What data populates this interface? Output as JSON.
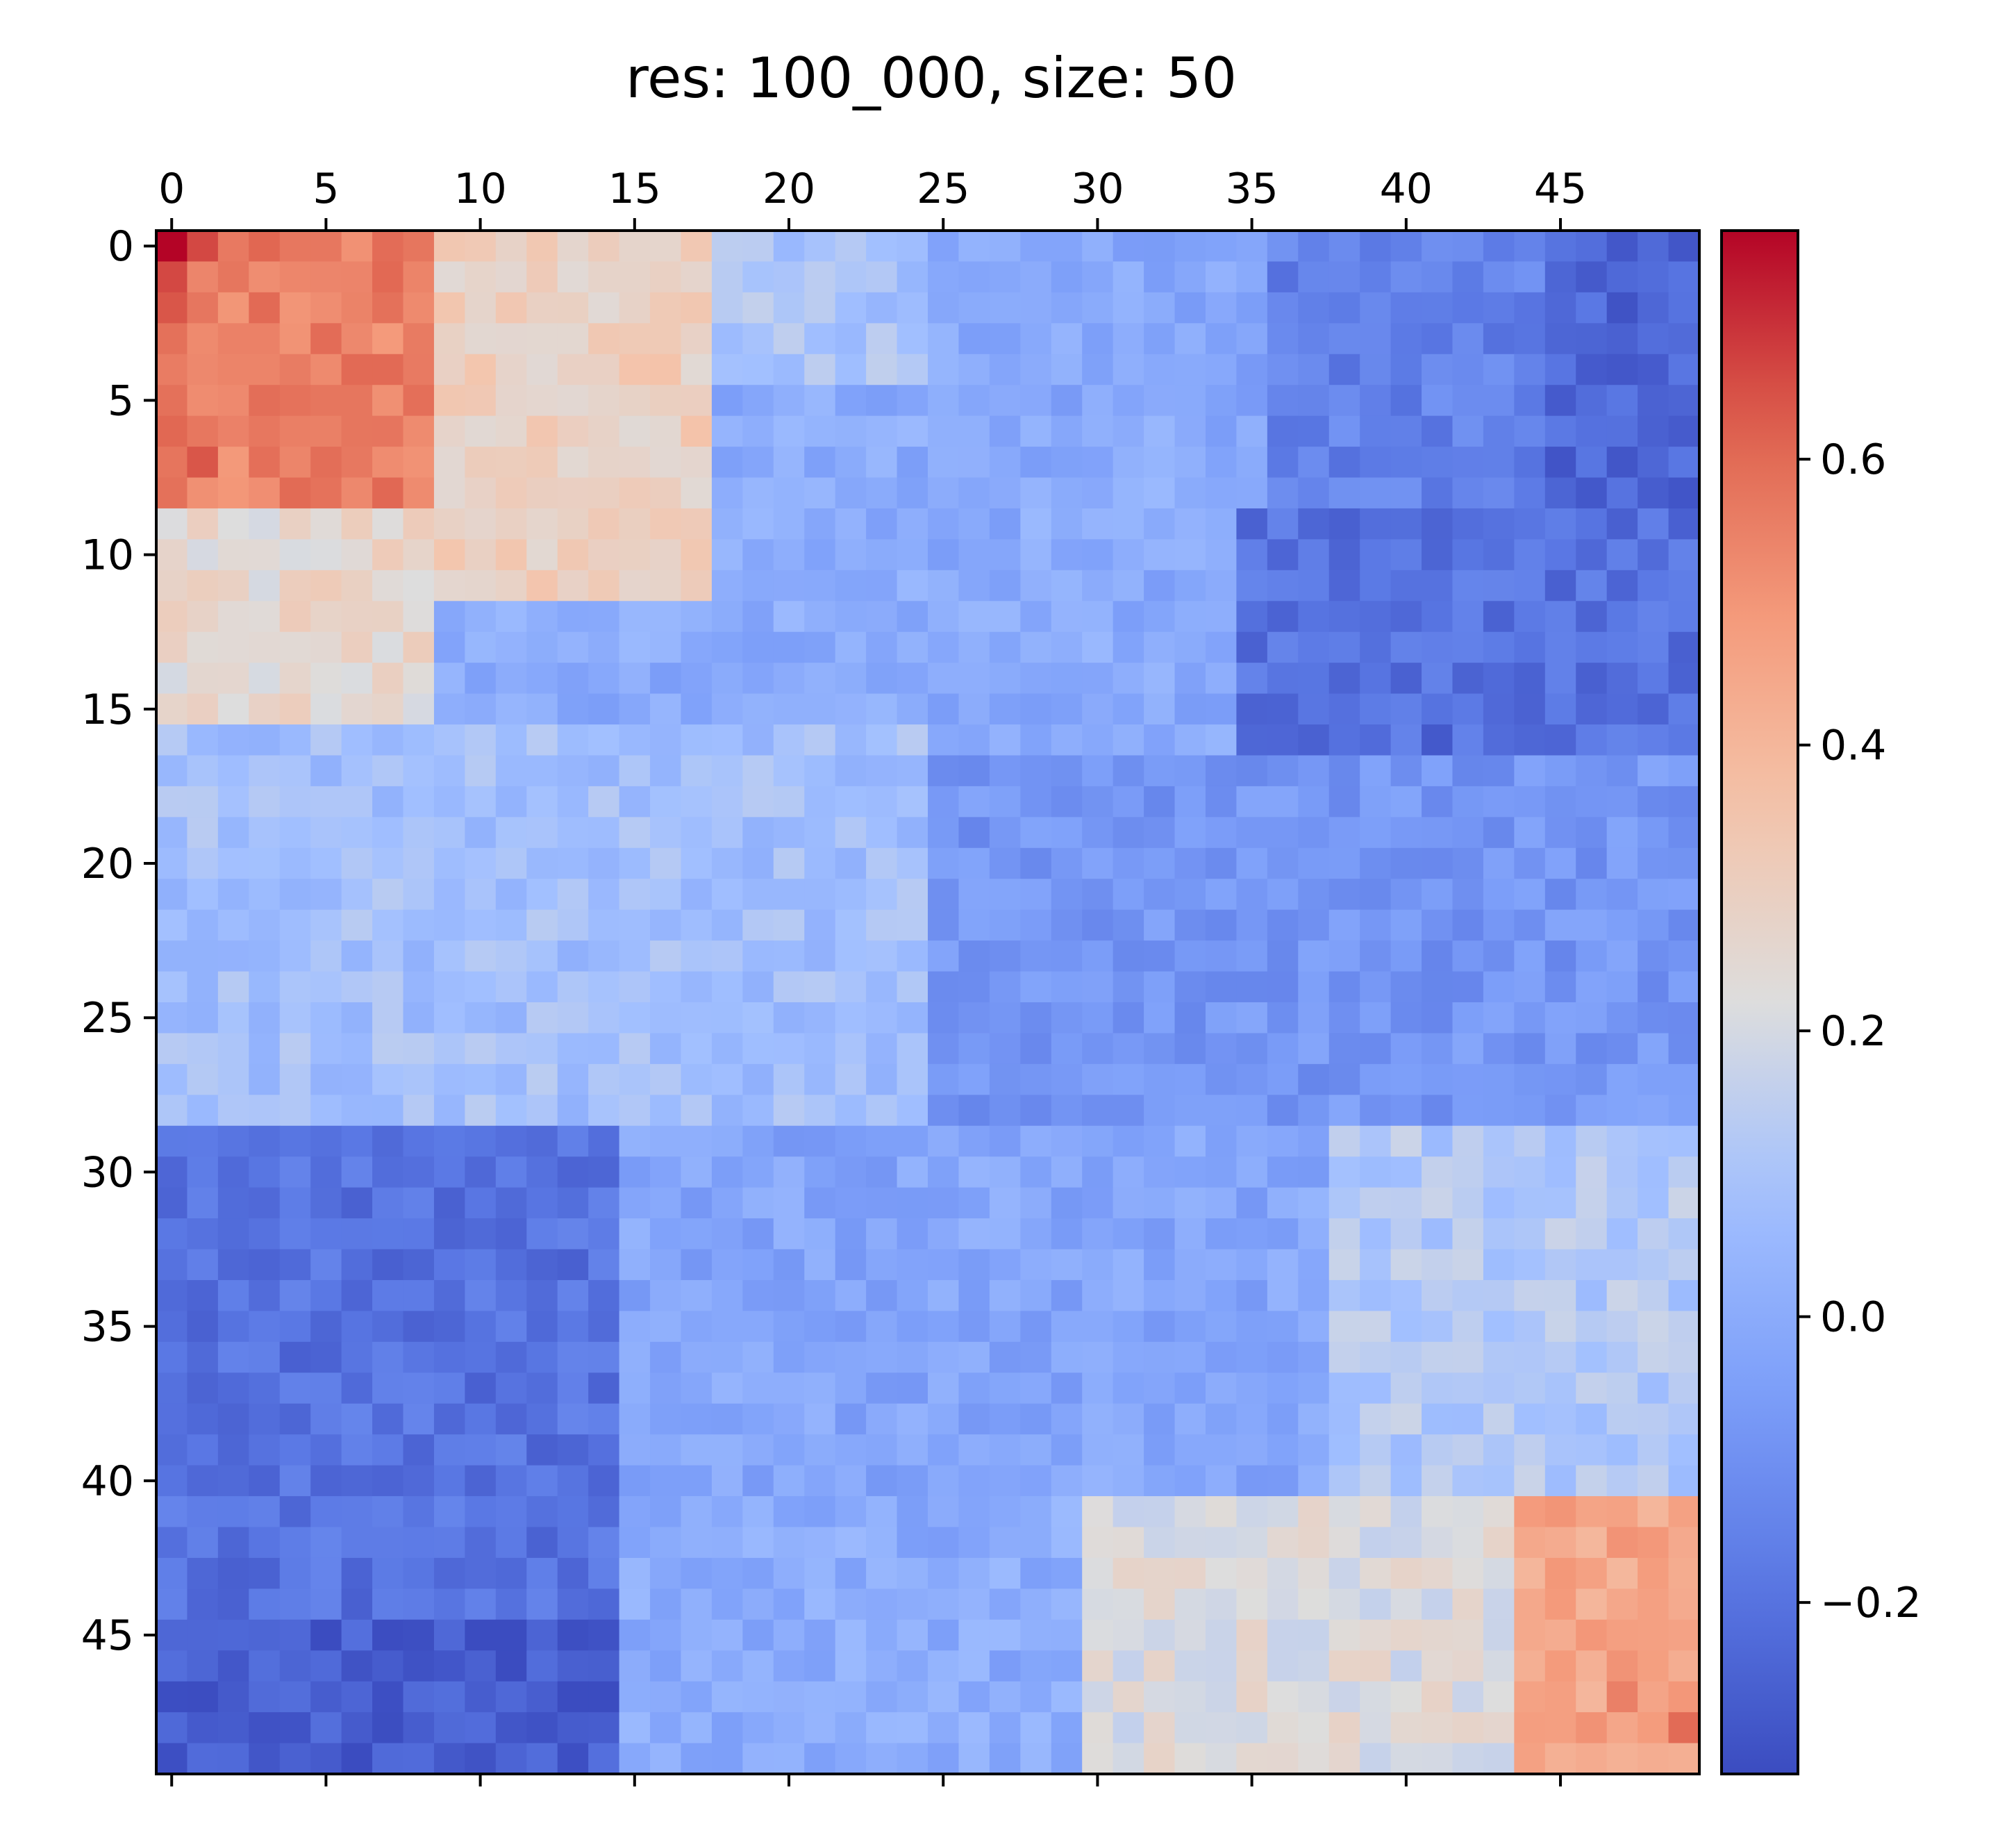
{
  "chart_data": {
    "type": "heatmap",
    "title": "res: 100_000, size: 50",
    "rows": 50,
    "cols": 50,
    "x_ticks": [
      0,
      5,
      10,
      15,
      20,
      25,
      30,
      35,
      40,
      45
    ],
    "x_tick_labels": [
      "0",
      "5",
      "10",
      "15",
      "20",
      "25",
      "30",
      "35",
      "40",
      "45"
    ],
    "y_ticks": [
      0,
      5,
      10,
      15,
      20,
      25,
      30,
      35,
      40,
      45
    ],
    "y_tick_labels": [
      "0",
      "5",
      "10",
      "15",
      "20",
      "25",
      "30",
      "35",
      "40",
      "45"
    ],
    "x_axis_position": "top",
    "colormap": "coolwarm",
    "vmin": -0.32,
    "vmax": 0.76,
    "colorbar_ticks": [
      -0.2,
      0.0,
      0.2,
      0.4,
      0.6
    ],
    "colorbar_tick_labels": [
      "−0.2",
      "0.0",
      "0.2",
      "0.4",
      "0.6"
    ],
    "value_description": "Correlation-like matrix: strong positive block near (0,0) (~0.76 max) and near (49,49) (~0.6), negative band (~-0.2 to -0.3) in upper-right and lower-left; fine per-cell noise.",
    "blocks": [
      {
        "r0": 0,
        "r1": 9,
        "c0": 0,
        "c1": 9,
        "value": 0.55
      },
      {
        "r0": 0,
        "r1": 12,
        "c0": 9,
        "c1": 18,
        "value": 0.3
      },
      {
        "r0": 0,
        "r1": 5,
        "c0": 18,
        "c1": 25,
        "value": 0.1
      },
      {
        "r0": 0,
        "r1": 6,
        "c0": 25,
        "c1": 36,
        "value": -0.02
      },
      {
        "r0": 0,
        "r1": 9,
        "c0": 36,
        "c1": 45,
        "value": -0.15
      },
      {
        "r0": 0,
        "r1": 9,
        "c0": 45,
        "c1": 50,
        "value": -0.24
      },
      {
        "r0": 9,
        "r1": 16,
        "c0": 0,
        "c1": 9,
        "value": 0.26
      },
      {
        "r0": 9,
        "r1": 17,
        "c0": 35,
        "c1": 50,
        "value": -0.2
      },
      {
        "r0": 16,
        "r1": 29,
        "c0": 0,
        "c1": 25,
        "value": 0.08
      },
      {
        "r0": 17,
        "r1": 29,
        "c0": 25,
        "c1": 50,
        "value": -0.08
      },
      {
        "r0": 29,
        "r1": 50,
        "c0": 0,
        "c1": 15,
        "value": -0.2
      },
      {
        "r0": 45,
        "r1": 50,
        "c0": 0,
        "c1": 15,
        "value": -0.27
      },
      {
        "r0": 29,
        "r1": 41,
        "c0": 15,
        "c1": 38,
        "value": -0.02
      },
      {
        "r0": 41,
        "r1": 50,
        "c0": 15,
        "c1": 30,
        "value": 0.0
      },
      {
        "r0": 29,
        "r1": 41,
        "c0": 38,
        "c1": 50,
        "value": 0.12
      },
      {
        "r0": 41,
        "r1": 50,
        "c0": 30,
        "c1": 44,
        "value": 0.22
      },
      {
        "r0": 41,
        "r1": 50,
        "c0": 44,
        "c1": 50,
        "value": 0.45
      }
    ],
    "hotspots": [
      {
        "row": 0,
        "col": 0,
        "value": 0.76
      },
      {
        "row": 1,
        "col": 0,
        "value": 0.66
      },
      {
        "row": 2,
        "col": 0,
        "value": 0.64
      },
      {
        "row": 7,
        "col": 1,
        "value": 0.64
      },
      {
        "row": 0,
        "col": 1,
        "value": 0.66
      },
      {
        "row": 48,
        "col": 49,
        "value": 0.6
      },
      {
        "row": 47,
        "col": 47,
        "value": 0.55
      },
      {
        "row": 2,
        "col": 47,
        "value": -0.3
      },
      {
        "row": 16,
        "col": 41,
        "value": -0.28
      },
      {
        "row": 46,
        "col": 6,
        "value": -0.3
      },
      {
        "row": 49,
        "col": 0,
        "value": -0.31
      },
      {
        "row": 49,
        "col": 10,
        "value": -0.3
      },
      {
        "row": 49,
        "col": 13,
        "value": -0.31
      }
    ],
    "noise_amplitude": 0.06,
    "noise_seed": 12345
  }
}
